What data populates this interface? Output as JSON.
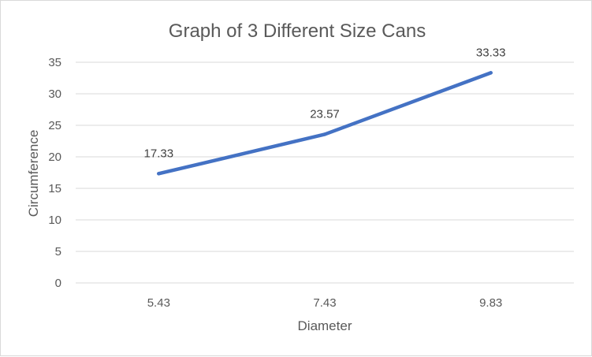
{
  "chart_data": {
    "type": "line",
    "title": "Graph of 3 Different Size Cans",
    "xlabel": "Diameter",
    "ylabel": "Circumference",
    "categories": [
      "5.43",
      "7.43",
      "9.83"
    ],
    "series": [
      {
        "values": [
          17.33,
          23.57,
          33.33
        ],
        "color": "#4472c4"
      }
    ],
    "data_labels": [
      "17.33",
      "23.57",
      "33.33"
    ],
    "ylim": [
      0,
      35
    ],
    "yticks": [
      0,
      5,
      10,
      15,
      20,
      25,
      30,
      35
    ],
    "ytick_labels": [
      "0",
      "5",
      "10",
      "15",
      "20",
      "25",
      "30",
      "35"
    ],
    "grid": true,
    "legend": "none",
    "colors": {
      "grid": "#d9d9d9",
      "text": "#595959",
      "line": "#4472c4"
    }
  }
}
